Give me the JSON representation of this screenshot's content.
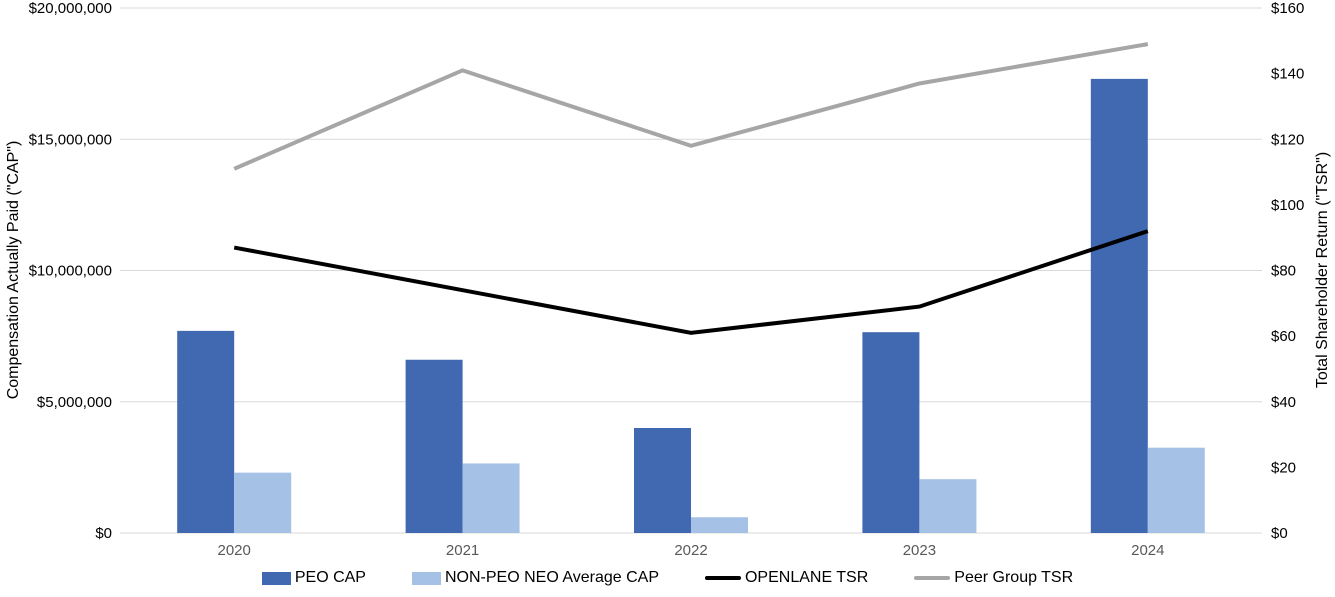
{
  "chart_data": {
    "type": "combo bar+line",
    "title": "",
    "categories": [
      "2020",
      "2021",
      "2022",
      "2023",
      "2024"
    ],
    "series": [
      {
        "name": "PEO CAP",
        "kind": "bar",
        "axis": "left",
        "color": "#4169B2",
        "values": [
          7700000,
          6600000,
          4000000,
          7650000,
          17300000
        ]
      },
      {
        "name": "NON-PEO NEO Average CAP",
        "kind": "bar",
        "axis": "left",
        "color": "#A6C1E6",
        "values": [
          2300000,
          2650000,
          600000,
          2050000,
          3250000
        ]
      },
      {
        "name": "OPENLANE TSR",
        "kind": "line",
        "axis": "right",
        "color": "#000000",
        "values": [
          87,
          74,
          61,
          69,
          92
        ]
      },
      {
        "name": "Peer Group TSR",
        "kind": "line",
        "axis": "right",
        "color": "#A6A6A6",
        "values": [
          111,
          141,
          118,
          137,
          149
        ]
      }
    ],
    "left_axis": {
      "label": "Compensation Actually Paid (\"CAP\")",
      "min": 0,
      "max": 20000000,
      "tick_step": 5000000,
      "tick_labels": [
        "$0",
        "$5,000,000",
        "$10,000,000",
        "$15,000,000",
        "$20,000,000"
      ]
    },
    "right_axis": {
      "label": "Total Shareholder Return (\"TSR\")",
      "min": 0,
      "max": 160,
      "tick_step": 20,
      "tick_labels": [
        "$0",
        "$20",
        "$40",
        "$60",
        "$80",
        "$100",
        "$120",
        "$140",
        "$160"
      ]
    },
    "x_axis": {
      "tick_labels": [
        "2020",
        "2021",
        "2022",
        "2023",
        "2024"
      ]
    },
    "grid": true,
    "legend_position": "bottom",
    "styles": {
      "gridline_color": "#D9D9D9",
      "x_label_color": "#595959",
      "tick_label_color": "#000000",
      "background": "#FFFFFF"
    }
  }
}
